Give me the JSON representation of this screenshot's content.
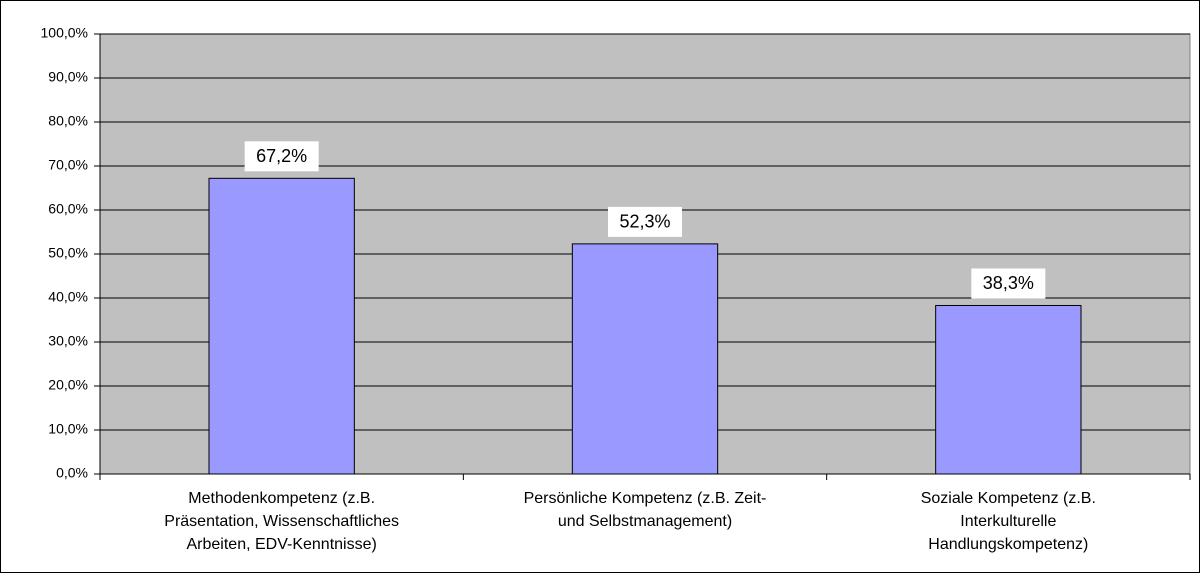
{
  "chart_data": {
    "type": "bar",
    "categories": [
      [
        "Methodenkompetenz (z.B.",
        "Präsentation, Wissenschaftliches",
        "Arbeiten, EDV-Kenntnisse)"
      ],
      [
        "Persönliche Kompetenz (z.B. Zeit-",
        "und Selbstmanagement)"
      ],
      [
        "Soziale Kompetenz (z.B.",
        "Interkulturelle",
        "Handlungskompetenz)"
      ]
    ],
    "values": [
      67.2,
      52.3,
      38.3
    ],
    "value_labels": [
      "67,2%",
      "52,3%",
      "38,3%"
    ],
    "color": "#9999ff",
    "ylim": [
      0,
      100
    ],
    "yticks": [
      {
        "value": 0,
        "label": "0,0%"
      },
      {
        "value": 10,
        "label": "10,0%"
      },
      {
        "value": 20,
        "label": "20,0%"
      },
      {
        "value": 30,
        "label": "30,0%"
      },
      {
        "value": 40,
        "label": "40,0%"
      },
      {
        "value": 50,
        "label": "50,0%"
      },
      {
        "value": 60,
        "label": "60,0%"
      },
      {
        "value": 70,
        "label": "70,0%"
      },
      {
        "value": 80,
        "label": "80,0%"
      },
      {
        "value": 90,
        "label": "90,0%"
      },
      {
        "value": 100,
        "label": "100,0%"
      }
    ],
    "grid": true
  }
}
